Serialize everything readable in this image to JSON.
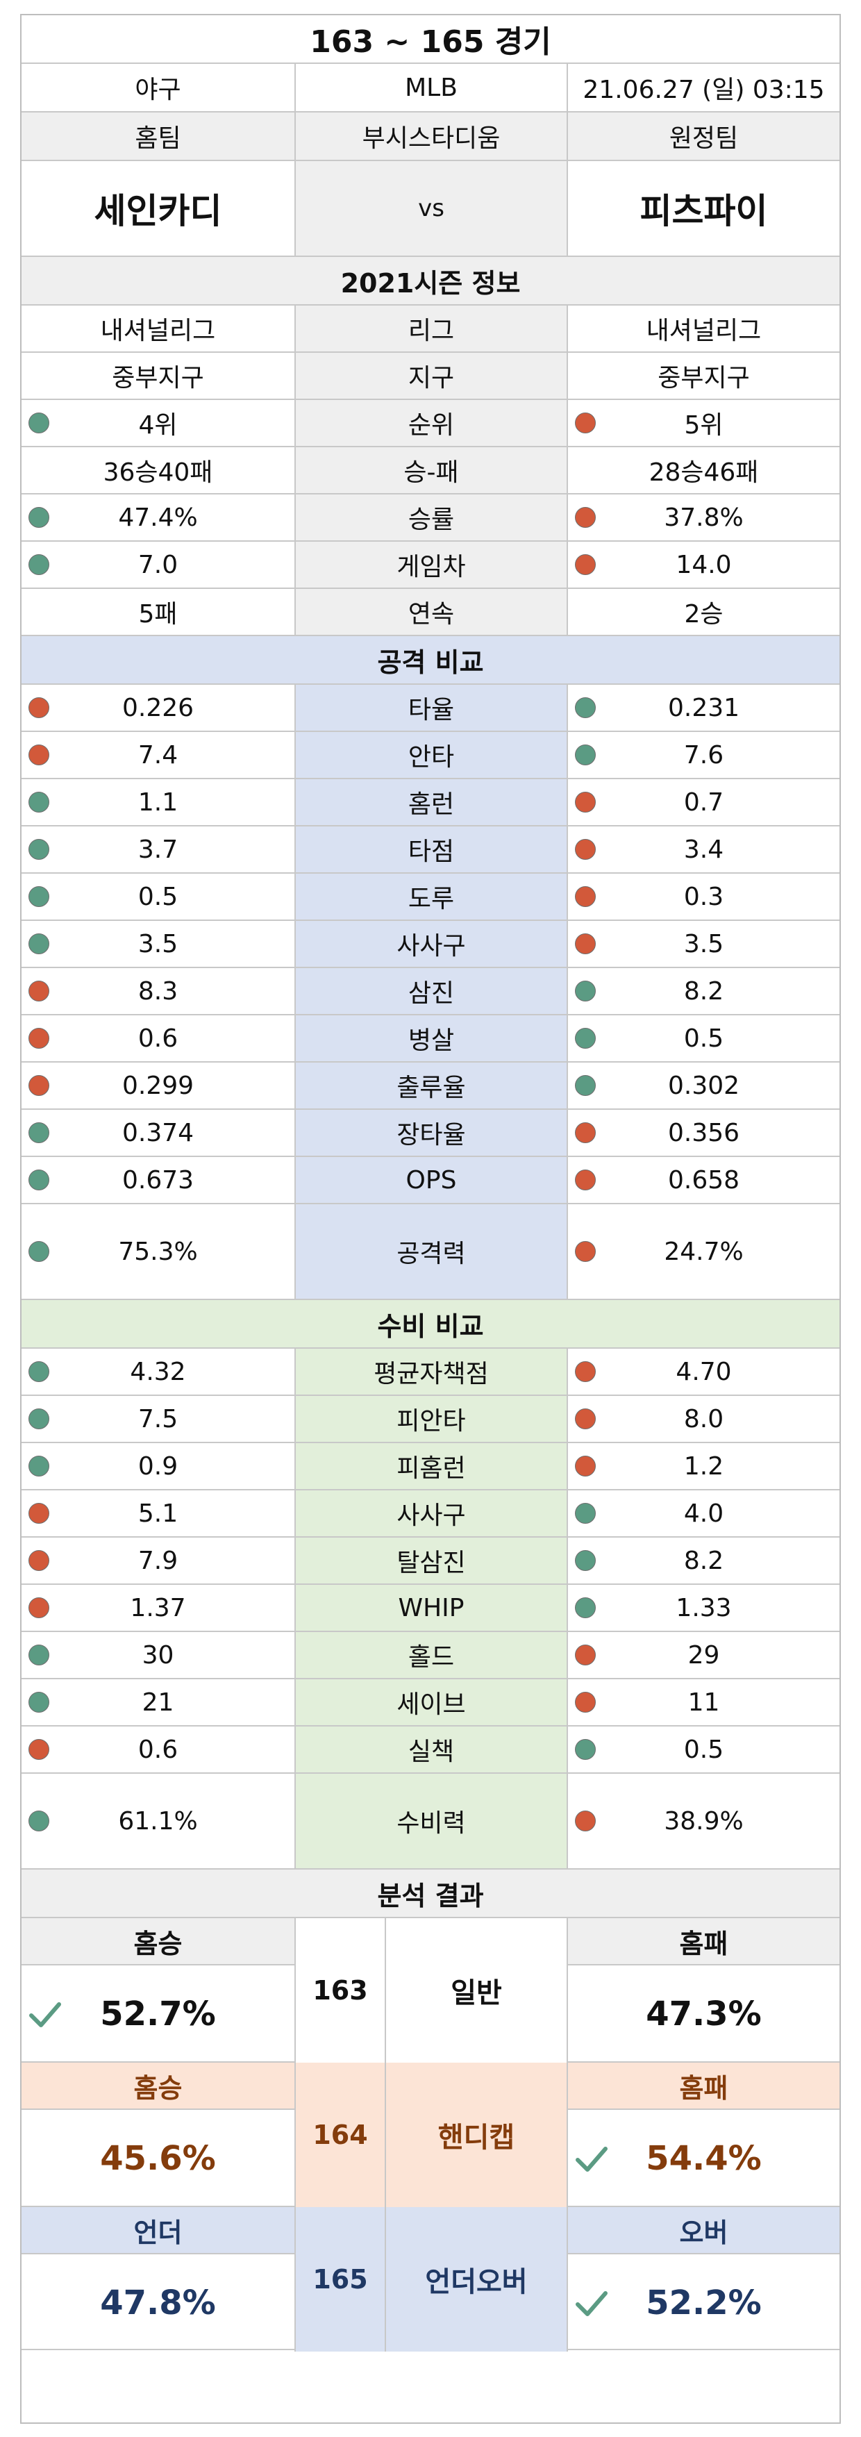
{
  "title": "163 ~ 165 경기",
  "info": {
    "sport": "야구",
    "league_name": "MLB",
    "datetime": "21.06.27 (일) 03:15"
  },
  "teams_header": {
    "home": "홈팀",
    "venue": "부시스타디움",
    "away": "원정팀"
  },
  "teams": {
    "home": "세인카디",
    "vs": "vs",
    "away": "피츠파이"
  },
  "season_header": "2021시즌 정보",
  "season": [
    {
      "home": "내셔널리그",
      "label": "리그",
      "away": "내셔널리그",
      "home_dot": "",
      "away_dot": ""
    },
    {
      "home": "중부지구",
      "label": "지구",
      "away": "중부지구",
      "home_dot": "",
      "away_dot": ""
    },
    {
      "home": "4위",
      "label": "순위",
      "away": "5위",
      "home_dot": "green",
      "away_dot": "red"
    },
    {
      "home": "36승40패",
      "label": "승-패",
      "away": "28승46패",
      "home_dot": "",
      "away_dot": ""
    },
    {
      "home": "47.4%",
      "label": "승률",
      "away": "37.8%",
      "home_dot": "green",
      "away_dot": "red"
    },
    {
      "home": "7.0",
      "label": "게임차",
      "away": "14.0",
      "home_dot": "green",
      "away_dot": "red"
    },
    {
      "home": "5패",
      "label": "연속",
      "away": "2승",
      "home_dot": "",
      "away_dot": ""
    }
  ],
  "attack_header": "공격 비교",
  "attack": [
    {
      "home": "0.226",
      "label": "타율",
      "away": "0.231",
      "home_dot": "red",
      "away_dot": "green"
    },
    {
      "home": "7.4",
      "label": "안타",
      "away": "7.6",
      "home_dot": "red",
      "away_dot": "green"
    },
    {
      "home": "1.1",
      "label": "홈런",
      "away": "0.7",
      "home_dot": "green",
      "away_dot": "red"
    },
    {
      "home": "3.7",
      "label": "타점",
      "away": "3.4",
      "home_dot": "green",
      "away_dot": "red"
    },
    {
      "home": "0.5",
      "label": "도루",
      "away": "0.3",
      "home_dot": "green",
      "away_dot": "red"
    },
    {
      "home": "3.5",
      "label": "사사구",
      "away": "3.5",
      "home_dot": "green",
      "away_dot": "red"
    },
    {
      "home": "8.3",
      "label": "삼진",
      "away": "8.2",
      "home_dot": "red",
      "away_dot": "green"
    },
    {
      "home": "0.6",
      "label": "병살",
      "away": "0.5",
      "home_dot": "red",
      "away_dot": "green"
    },
    {
      "home": "0.299",
      "label": "출루율",
      "away": "0.302",
      "home_dot": "red",
      "away_dot": "green"
    },
    {
      "home": "0.374",
      "label": "장타율",
      "away": "0.356",
      "home_dot": "green",
      "away_dot": "red"
    },
    {
      "home": "0.673",
      "label": "OPS",
      "away": "0.658",
      "home_dot": "green",
      "away_dot": "red"
    },
    {
      "home": "75.3%",
      "label": "공격력",
      "away": "24.7%",
      "home_dot": "green",
      "away_dot": "red",
      "tall": true
    }
  ],
  "defense_header": "수비 비교",
  "defense": [
    {
      "home": "4.32",
      "label": "평균자책점",
      "away": "4.70",
      "home_dot": "green",
      "away_dot": "red"
    },
    {
      "home": "7.5",
      "label": "피안타",
      "away": "8.0",
      "home_dot": "green",
      "away_dot": "red"
    },
    {
      "home": "0.9",
      "label": "피홈런",
      "away": "1.2",
      "home_dot": "green",
      "away_dot": "red"
    },
    {
      "home": "5.1",
      "label": "사사구",
      "away": "4.0",
      "home_dot": "red",
      "away_dot": "green"
    },
    {
      "home": "7.9",
      "label": "탈삼진",
      "away": "8.2",
      "home_dot": "red",
      "away_dot": "green"
    },
    {
      "home": "1.37",
      "label": "WHIP",
      "away": "1.33",
      "home_dot": "red",
      "away_dot": "green"
    },
    {
      "home": "30",
      "label": "홀드",
      "away": "29",
      "home_dot": "green",
      "away_dot": "red"
    },
    {
      "home": "21",
      "label": "세이브",
      "away": "11",
      "home_dot": "green",
      "away_dot": "red"
    },
    {
      "home": "0.6",
      "label": "실책",
      "away": "0.5",
      "home_dot": "red",
      "away_dot": "green"
    },
    {
      "home": "61.1%",
      "label": "수비력",
      "away": "38.9%",
      "home_dot": "green",
      "away_dot": "red",
      "tall": true
    }
  ],
  "analysis_header": "분석 결과",
  "analysis": [
    {
      "number": "163",
      "name": "일반",
      "left_label": "홈승",
      "left_value": "52.7%",
      "right_label": "홈패",
      "right_value": "47.3%",
      "pick": "left",
      "theme": "gray"
    },
    {
      "number": "164",
      "name": "핸디캡",
      "left_label": "홈승",
      "left_value": "45.6%",
      "right_label": "홈패",
      "right_value": "54.4%",
      "pick": "right",
      "theme": "peach"
    },
    {
      "number": "165",
      "name": "언더오버",
      "left_label": "언더",
      "left_value": "47.8%",
      "right_label": "오버",
      "right_value": "52.2%",
      "pick": "right",
      "theme": "blue"
    }
  ],
  "colors": {
    "green_dot": "#5b9b83",
    "red_dot": "#d2593a",
    "attack_bg": "#d9e1f2",
    "defense_bg": "#e2efda",
    "handicap_bg": "#fce4d6",
    "check": "#5b9b83"
  }
}
